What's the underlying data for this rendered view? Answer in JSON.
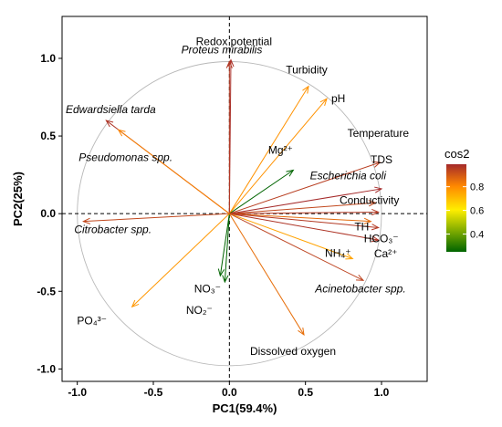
{
  "chart_data": {
    "type": "scatter",
    "subtype": "pca-correlation-circle",
    "xlabel": "PC1(59.4%)",
    "ylabel": "PC2(25%)",
    "xlim": [
      -1.1,
      1.3
    ],
    "ylim": [
      -1.08,
      1.27
    ],
    "x_ticks": [
      -1.0,
      -0.5,
      0.0,
      0.5,
      1.0
    ],
    "x_tick_labels": [
      "-1.0",
      "-0.5",
      "0.0",
      "0.5",
      "1.0"
    ],
    "y_ticks": [
      -1.0,
      -0.5,
      0.0,
      0.5,
      1.0
    ],
    "y_tick_labels": [
      "-1.0",
      "-0.5",
      "0.0",
      "0.5",
      "1.0"
    ],
    "grid": false,
    "unit_circle": true,
    "zero_lines": "dashed",
    "legend": {
      "title": "cos2",
      "placement": "right",
      "type": "colorbar",
      "range": [
        0.25,
        0.99
      ],
      "ticks": [
        0.4,
        0.6,
        0.8
      ],
      "tick_labels": [
        "0.4",
        "0.6",
        "0.8"
      ],
      "colors": [
        "#006400",
        "#ffee00",
        "#ff8800",
        "#a52a2a"
      ]
    },
    "variables": [
      {
        "label": "Proteus mirabilis",
        "italic": true,
        "x": 0.01,
        "y": 0.99,
        "cos2": 0.98
      },
      {
        "label": "Redox potential",
        "italic": false,
        "x": 0.0,
        "y": 0.98,
        "cos2": 0.96
      },
      {
        "label": "Turbidity",
        "italic": false,
        "x": 0.52,
        "y": 0.82,
        "cos2": 0.78
      },
      {
        "label": "pH",
        "italic": false,
        "x": 0.64,
        "y": 0.74,
        "cos2": 0.78
      },
      {
        "label": "Edwardsiella tarda",
        "italic": true,
        "x": -0.81,
        "y": 0.6,
        "cos2": 0.97
      },
      {
        "label": "Pseudomonas spp.",
        "italic": true,
        "x": -0.73,
        "y": 0.54,
        "cos2": 0.81
      },
      {
        "label": "Mg²⁺",
        "italic": false,
        "x": 0.42,
        "y": 0.28,
        "cos2": 0.25
      },
      {
        "label": "Temperature",
        "italic": false,
        "x": 0.99,
        "y": 0.33,
        "cos2": 0.95
      },
      {
        "label": "TDS",
        "italic": false,
        "x": 1.0,
        "y": 0.16,
        "cos2": 0.99
      },
      {
        "label": "Escherichia coli",
        "italic": true,
        "x": 0.96,
        "y": 0.07,
        "cos2": 0.93
      },
      {
        "label": "Conductivity",
        "italic": false,
        "x": 0.98,
        "y": 0.01,
        "cos2": 0.96
      },
      {
        "label": "Citrobacter spp.",
        "italic": true,
        "x": -0.96,
        "y": -0.05,
        "cos2": 0.93
      },
      {
        "label": "TH",
        "italic": false,
        "x": 0.93,
        "y": -0.05,
        "cos2": 0.86
      },
      {
        "label": "HCO₃⁻",
        "italic": false,
        "x": 0.98,
        "y": -0.09,
        "cos2": 0.96
      },
      {
        "label": "Ca²⁺",
        "italic": false,
        "x": 0.98,
        "y": -0.17,
        "cos2": 0.97
      },
      {
        "label": "NH₄⁺",
        "italic": false,
        "x": 0.81,
        "y": -0.29,
        "cos2": 0.75
      },
      {
        "label": "Acinetobacter spp.",
        "italic": true,
        "x": 0.88,
        "y": -0.43,
        "cos2": 0.94
      },
      {
        "label": "NO₃⁻",
        "italic": false,
        "x": -0.06,
        "y": -0.4,
        "cos2": 0.16
      },
      {
        "label": "NO₂⁻",
        "italic": false,
        "x": -0.03,
        "y": -0.44,
        "cos2": 0.2
      },
      {
        "label": "PO₄³⁻",
        "italic": false,
        "x": -0.64,
        "y": -0.6,
        "cos2": 0.77
      },
      {
        "label": "Dissolved oxygen",
        "italic": false,
        "x": 0.49,
        "y": -0.78,
        "cos2": 0.85
      }
    ]
  }
}
